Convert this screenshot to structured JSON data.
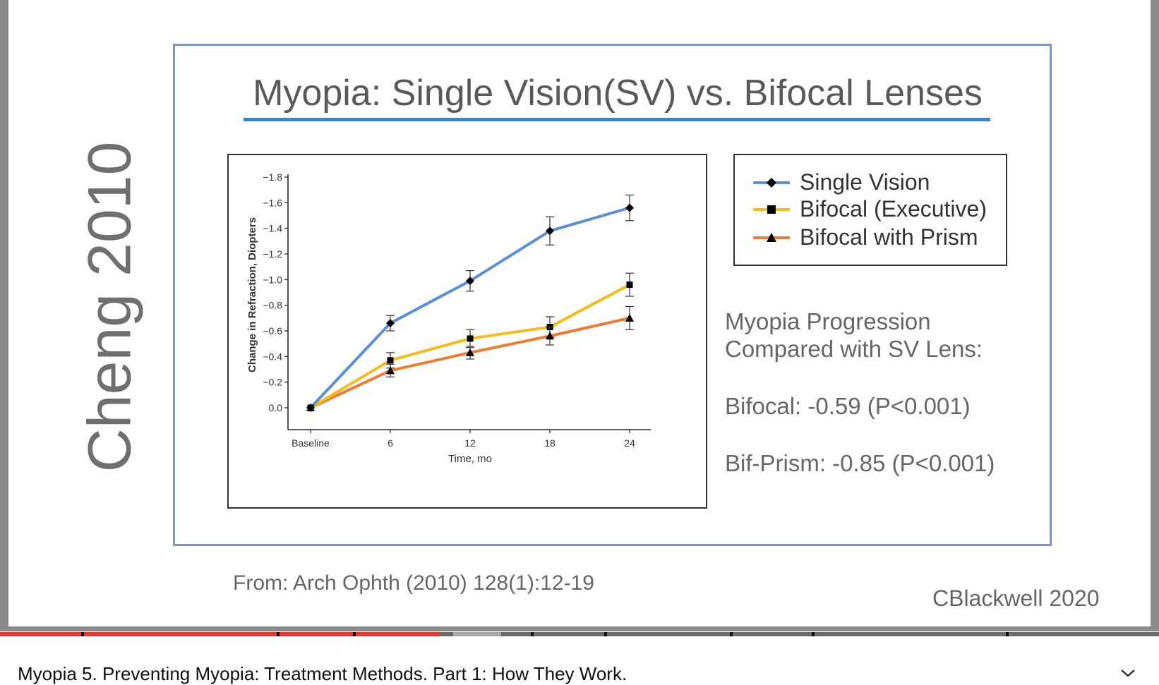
{
  "slide": {
    "side_title": "Cheng 2010",
    "title": "Myopia: Single Vision(SV) vs. Bifocal Lenses",
    "legend": [
      {
        "label": "Single Vision",
        "color": "#5b8fd6",
        "marker": "diamond"
      },
      {
        "label": "Bifocal (Executive)",
        "color": "#f5bc1c",
        "marker": "square"
      },
      {
        "label": "Bifocal with Prism",
        "color": "#ec7b34",
        "marker": "triangle"
      }
    ],
    "progression": {
      "line1": "Myopia Progression",
      "line2": "Compared with SV Lens:",
      "bifocal": "Bifocal: -0.59 (P<0.001)",
      "prism": "Bif-Prism: -0.85 (P<0.001)"
    },
    "source": "From: Arch Ophth (2010) 128(1):12-19",
    "credit": "CBlackwell 2020"
  },
  "chart_data": {
    "type": "line",
    "categories": [
      "Baseline",
      "6",
      "12",
      "18",
      "24"
    ],
    "xlabel": "Time, mo",
    "ylabel": "Change in Refraction, Diopters",
    "yticks": [
      "−1.8",
      "−1.6",
      "−1.4",
      "−1.2",
      "−1.0",
      "−0.8",
      "−0.6",
      "−0.4",
      "−0.2",
      "0.0"
    ],
    "ylim": [
      0.0,
      -1.8
    ],
    "series": [
      {
        "name": "Single Vision",
        "color": "#5b8fd6",
        "marker": "diamond",
        "values": [
          0.0,
          -0.66,
          -0.99,
          -1.38,
          -1.56
        ],
        "error": [
          0.02,
          0.06,
          0.08,
          0.11,
          0.1
        ]
      },
      {
        "name": "Bifocal (Executive)",
        "color": "#f5bc1c",
        "marker": "square",
        "values": [
          0.0,
          -0.37,
          -0.54,
          -0.63,
          -0.96
        ],
        "error": [
          0.02,
          0.06,
          0.07,
          0.08,
          0.09
        ]
      },
      {
        "name": "Bifocal with Prism",
        "color": "#ec7b34",
        "marker": "triangle",
        "values": [
          0.0,
          -0.29,
          -0.43,
          -0.56,
          -0.7
        ],
        "error": [
          0.02,
          0.05,
          0.05,
          0.07,
          0.09
        ]
      }
    ]
  },
  "player": {
    "video_title": "Myopia 5. Preventing Myopia: Treatment Methods. Part 1: How They Work.",
    "progress": 0.38
  }
}
